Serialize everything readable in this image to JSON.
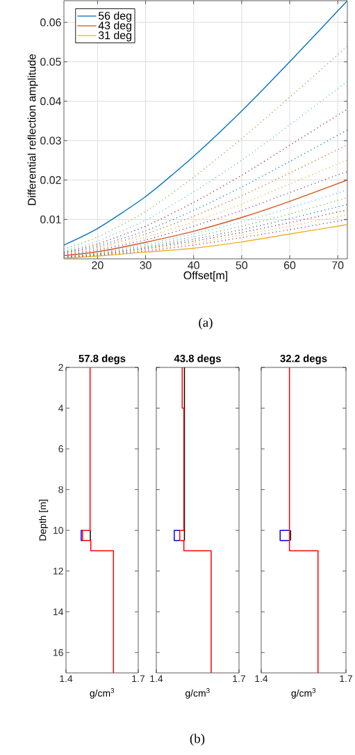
{
  "chart_data": [
    {
      "type": "line",
      "xlabel": "Offset[m]",
      "ylabel": "Differential reflection amplitude",
      "xlim": [
        13,
        72
      ],
      "ylim": [
        0,
        0.0655
      ],
      "xticks": [
        20,
        30,
        40,
        50,
        60,
        70
      ],
      "yticks": [
        0.01,
        0.02,
        0.03,
        0.04,
        0.05,
        0.06
      ],
      "grid": true,
      "legend": "top left",
      "annotations": [
        "(a)"
      ],
      "x": [
        13,
        20,
        30,
        40,
        50,
        60,
        72
      ],
      "series": [
        {
          "name": "56 deg",
          "color": "#0072bd",
          "values": [
            0.0035,
            0.0077,
            0.0158,
            0.026,
            0.0375,
            0.05,
            0.0655
          ]
        },
        {
          "name": "43 deg",
          "color": "#d95319",
          "values": [
            0.0008,
            0.0018,
            0.0042,
            0.007,
            0.0105,
            0.0146,
            0.02
          ]
        },
        {
          "name": "31 deg",
          "color": "#edb120",
          "values": [
            0.0002,
            0.0007,
            0.0017,
            0.0027,
            0.0043,
            0.0063,
            0.0087
          ]
        },
        {
          "color": "#77ac30",
          "line_style": "dotted",
          "values": [
            0.0025,
            0.0055,
            0.012,
            0.0207,
            0.0305,
            0.041,
            0.054
          ]
        },
        {
          "color": "#4dbeee",
          "line_style": "dotted",
          "values": [
            0.002,
            0.0045,
            0.0098,
            0.017,
            0.025,
            0.034,
            0.045
          ]
        },
        {
          "color": "#a2142f",
          "line_style": "dotted",
          "values": [
            0.0017,
            0.0038,
            0.0083,
            0.0143,
            0.0212,
            0.0288,
            0.038
          ]
        },
        {
          "color": "#0072bd",
          "line_style": "dotted",
          "values": [
            0.0015,
            0.0033,
            0.0071,
            0.0123,
            0.0182,
            0.0247,
            0.0327
          ]
        },
        {
          "color": "#d95319",
          "line_style": "dotted",
          "values": [
            0.0013,
            0.0029,
            0.0063,
            0.0108,
            0.016,
            0.0218,
            0.0289
          ]
        },
        {
          "color": "#edb120",
          "line_style": "dotted",
          "values": [
            0.0011,
            0.0025,
            0.0055,
            0.0094,
            0.0139,
            0.019,
            0.0251
          ]
        },
        {
          "color": "#7e2f8e",
          "line_style": "dotted",
          "values": [
            0.001,
            0.0022,
            0.0048,
            0.0083,
            0.0123,
            0.0168,
            0.0222
          ]
        },
        {
          "color": "#4dbeee",
          "line_style": "dotted",
          "values": [
            0.0007,
            0.0016,
            0.0037,
            0.0063,
            0.0094,
            0.0129,
            0.0175
          ]
        },
        {
          "color": "#77ac30",
          "line_style": "dotted",
          "values": [
            0.0006,
            0.0014,
            0.0033,
            0.0056,
            0.0083,
            0.0114,
            0.0155
          ]
        },
        {
          "color": "#0072bd",
          "line_style": "dotted",
          "values": [
            0.0005,
            0.0012,
            0.0029,
            0.005,
            0.0074,
            0.0102,
            0.0138
          ]
        },
        {
          "color": "#a2142f",
          "line_style": "dotted",
          "values": [
            0.0004,
            0.0011,
            0.0026,
            0.0045,
            0.0067,
            0.0092,
            0.0124
          ]
        },
        {
          "color": "#edb120",
          "line_style": "dotted",
          "values": [
            0.0004,
            0.001,
            0.0023,
            0.004,
            0.006,
            0.0083,
            0.0112
          ]
        },
        {
          "color": "#7e2f8e",
          "line_style": "dotted",
          "values": [
            0.0003,
            0.0009,
            0.002,
            0.0035,
            0.0054,
            0.0074,
            0.01
          ]
        }
      ]
    },
    {
      "type": "line",
      "title": "57.8 degs",
      "xlabel": "g/cm$^{3}$",
      "ylabel": "Depth [m]",
      "xlim": [
        1.4,
        1.7
      ],
      "ylim": [
        17,
        2
      ],
      "xticks": [
        1.4,
        1.7
      ],
      "yticks": [
        2,
        4,
        6,
        8,
        10,
        12,
        14,
        16
      ],
      "series": [
        {
          "color": "#000000",
          "x": [
            1.501,
            1.501
          ],
          "values": [
            10,
            10.5
          ]
        },
        {
          "color": "#0000ff",
          "x": [
            1.469,
            1.463,
            1.463,
            1.469
          ],
          "values": [
            10,
            10,
            10.5,
            10.5
          ]
        },
        {
          "color": "#ff0000",
          "x": [
            1.5,
            1.5,
            1.469,
            1.469,
            1.503,
            1.503,
            1.597,
            1.597
          ],
          "values": [
            2,
            10,
            10,
            10.5,
            10.5,
            11,
            11,
            17
          ]
        }
      ]
    },
    {
      "type": "line",
      "title": "43.8 degs",
      "xlabel": "g/cm$^{3}$",
      "xlim": [
        1.4,
        1.7
      ],
      "ylim": [
        17,
        2
      ],
      "xticks": [
        1.4,
        1.7
      ],
      "yticks": [
        2,
        4,
        6,
        8,
        10,
        12,
        14,
        16
      ],
      "tick_labels": "x",
      "annotations": [
        "(b)"
      ],
      "series": [
        {
          "color": "#000000",
          "x": [
            1.502,
            1.502
          ],
          "values": [
            2,
            10.5
          ]
        },
        {
          "color": "#0000ff",
          "x": [
            1.485,
            1.465,
            1.465,
            1.485
          ],
          "values": [
            10,
            10,
            10.5,
            10.5
          ]
        },
        {
          "color": "#ff0000",
          "x": [
            1.494,
            1.494,
            1.5,
            1.5,
            1.485,
            1.485,
            1.5,
            1.5,
            1.599,
            1.599
          ],
          "values": [
            2,
            4,
            4,
            10,
            10,
            10.5,
            10.5,
            11,
            11,
            17
          ]
        }
      ]
    },
    {
      "type": "line",
      "title": "32.2 degs",
      "xlabel": "g/cm$^{3}$",
      "xlim": [
        1.4,
        1.7
      ],
      "ylim": [
        17,
        2
      ],
      "xticks": [
        1.4,
        1.7
      ],
      "yticks": [
        2,
        4,
        6,
        8,
        10,
        12,
        14,
        16
      ],
      "tick_labels": "x",
      "series": [
        {
          "color": "#000000",
          "x": [
            1.504,
            1.504
          ],
          "values": [
            10,
            10.5
          ]
        },
        {
          "color": "#0000ff",
          "x": [
            1.5,
            1.467,
            1.467,
            1.5
          ],
          "values": [
            10,
            10,
            10.5,
            10.5
          ]
        },
        {
          "color": "#ff0000",
          "x": [
            1.5,
            1.5,
            1.601,
            1.601
          ],
          "values": [
            2,
            11,
            11,
            17
          ]
        }
      ]
    }
  ]
}
